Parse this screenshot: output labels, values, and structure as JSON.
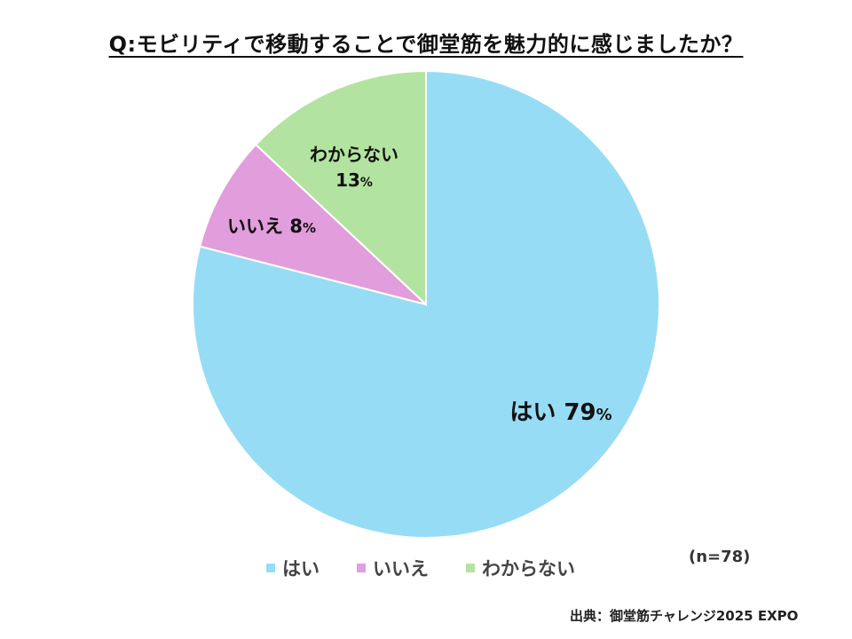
{
  "chart_data": {
    "type": "pie",
    "title": "Q:モビリティで移動することで御堂筋を魅力的に感じましたか？",
    "categories": [
      "はい",
      "いいえ",
      "わからない"
    ],
    "values": [
      79,
      8,
      13
    ],
    "unit": "%",
    "colors": [
      "#97dcf5",
      "#e29ddc",
      "#b3e3a0"
    ],
    "legend": "bottom"
  },
  "sample_note": "(n=78)",
  "source": "出典：御堂筋チャレンジ2025 EXPO"
}
